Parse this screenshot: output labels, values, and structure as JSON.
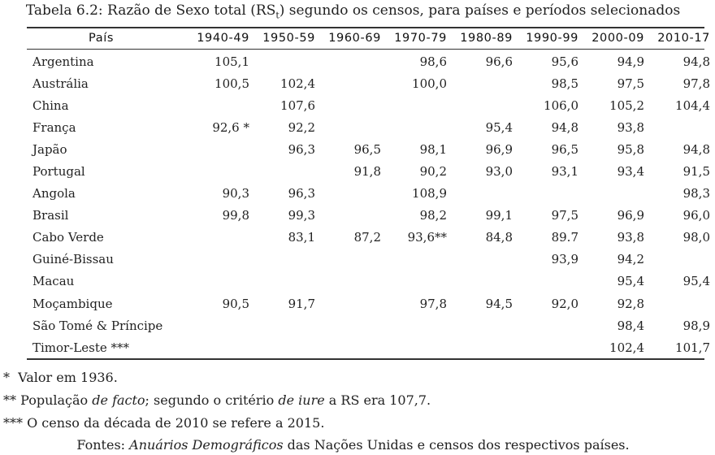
{
  "caption": {
    "prefix": "Tabela 6.2: Razão de Sexo total (RS",
    "subscript": "t",
    "suffix": ") segundo os censos, para países e períodos selecionados"
  },
  "chart_data": {
    "type": "table",
    "columns": [
      "País",
      "1940-49",
      "1950-59",
      "1960-69",
      "1970-79",
      "1980-89",
      "1990-99",
      "2000-09",
      "2010-17"
    ],
    "rows": [
      [
        "Argentina",
        "105,1",
        "",
        "",
        "98,6",
        "96,6",
        "95,6",
        "94,9",
        "94,8"
      ],
      [
        "Austrália",
        "100,5",
        "102,4",
        "",
        "100,0",
        "",
        "98,5",
        "97,5",
        "97,8"
      ],
      [
        "China",
        "",
        "107,6",
        "",
        "",
        "",
        "106,0",
        "105,2",
        "104,4"
      ],
      [
        "França",
        "92,6 *",
        "92,2",
        "",
        "",
        "95,4",
        "94,8",
        "93,8",
        ""
      ],
      [
        "Japão",
        "",
        "96,3",
        "96,5",
        "98,1",
        "96,9",
        "96,5",
        "95,8",
        "94,8"
      ],
      [
        "Portugal",
        "",
        "",
        "91,8",
        "90,2",
        "93,0",
        "93,1",
        "93,4",
        "91,5"
      ],
      [
        "Angola",
        "90,3",
        "96,3",
        "",
        "108,9",
        "",
        "",
        "",
        "98,3"
      ],
      [
        "Brasil",
        "99,8",
        "99,3",
        "",
        "98,2",
        "99,1",
        "97,5",
        "96,9",
        "96,0"
      ],
      [
        "Cabo Verde",
        "",
        "83,1",
        "87,2",
        "93,6**",
        "84,8",
        "89.7",
        "93,8",
        "98,0"
      ],
      [
        "Guiné-Bissau",
        "",
        "",
        "",
        "",
        "",
        "93,9",
        "94,2",
        ""
      ],
      [
        "Macau",
        "",
        "",
        "",
        "",
        "",
        "",
        "95,4",
        "95,4"
      ],
      [
        "Moçambique",
        "90,5",
        "91,7",
        "",
        "97,8",
        "94,5",
        "92,0",
        "92,8",
        ""
      ],
      [
        "São Tomé & Príncipe",
        "",
        "",
        "",
        "",
        "",
        "",
        "98,4",
        "98,9"
      ],
      [
        "Timor-Leste ***",
        "",
        "",
        "",
        "",
        "",
        "",
        "102,4",
        "101,7"
      ]
    ]
  },
  "notes": {
    "n1": {
      "sym": "*",
      "text": "Valor em 1936."
    },
    "n2": {
      "sym": "**",
      "p1": "População ",
      "i1": "de facto",
      "p2": "; segundo o critério ",
      "i2": "de iure",
      "p3": " a RS era 107,7."
    },
    "n3": {
      "sym": "***",
      "text": "O censo da década de 2010 se refere a 2015."
    }
  },
  "sources": {
    "p1": "Fontes: ",
    "i1": "Anuários Demográficos",
    "p2": " das Nações Unidas e censos dos respectivos países."
  }
}
